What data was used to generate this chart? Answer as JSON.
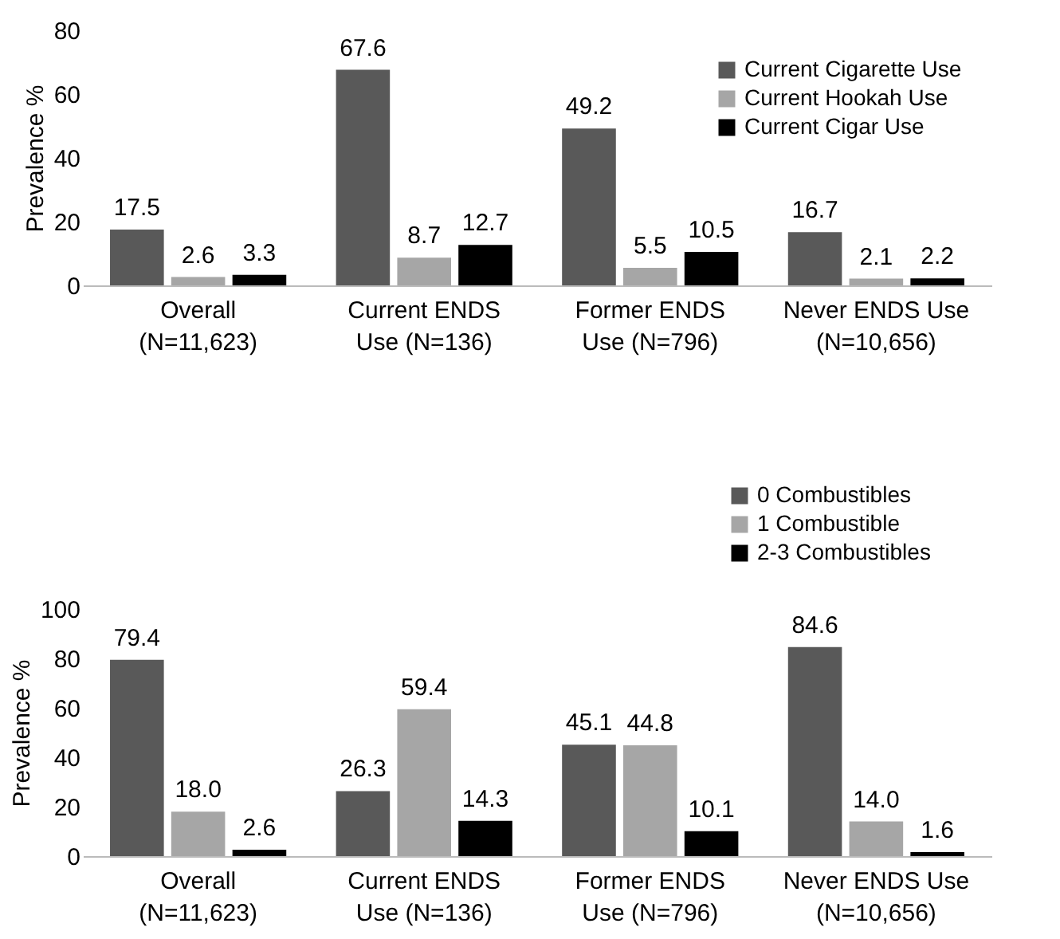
{
  "chart_data": [
    {
      "type": "bar",
      "categories": [
        "Overall\n(N=11,623)",
        "Current ENDS\nUse (N=136)",
        "Former ENDS\nUse (N=796)",
        "Never ENDS Use\n(N=10,656)"
      ],
      "ylabel": "Prevalence %",
      "ylim": [
        0,
        80
      ],
      "yticks": [
        0,
        20,
        40,
        60,
        80
      ],
      "legend": "top right",
      "data_labels": true,
      "series": [
        {
          "name": "Current Cigarette Use",
          "color": "#595959",
          "values": [
            17.5,
            67.6,
            49.2,
            16.7
          ]
        },
        {
          "name": "Current Hookah Use",
          "color": "#a6a6a6",
          "values": [
            2.6,
            8.7,
            5.5,
            2.1
          ]
        },
        {
          "name": "Current Cigar Use",
          "color": "#000000",
          "values": [
            3.3,
            12.7,
            10.5,
            2.2
          ]
        }
      ]
    },
    {
      "type": "bar",
      "categories": [
        "Overall\n(N=11,623)",
        "Current ENDS\nUse (N=136)",
        "Former ENDS\nUse (N=796)",
        "Never ENDS Use\n(N=10,656)"
      ],
      "ylabel": "Prevalence %",
      "ylim": [
        0,
        100
      ],
      "yticks": [
        0,
        20,
        40,
        60,
        80,
        100
      ],
      "legend": "top",
      "series": [
        {
          "name": "0 Combustibles",
          "color": "#595959",
          "values": [
            79.4,
            26.3,
            45.1,
            84.6
          ],
          "value_labels": [
            "79.4",
            "26.3",
            "45.1",
            "84.6"
          ]
        },
        {
          "name": "1 Combustible",
          "color": "#a6a6a6",
          "values": [
            18.0,
            59.4,
            44.8,
            14.0
          ],
          "value_labels": [
            "18.0",
            "59.4",
            "44.8",
            "14.0"
          ]
        },
        {
          "name": "2-3 Combustibles",
          "color": "#000000",
          "values": [
            2.6,
            14.3,
            10.1,
            1.6
          ],
          "value_labels": [
            "2.6",
            "14.3",
            "10.1",
            "1.6"
          ]
        }
      ]
    }
  ]
}
